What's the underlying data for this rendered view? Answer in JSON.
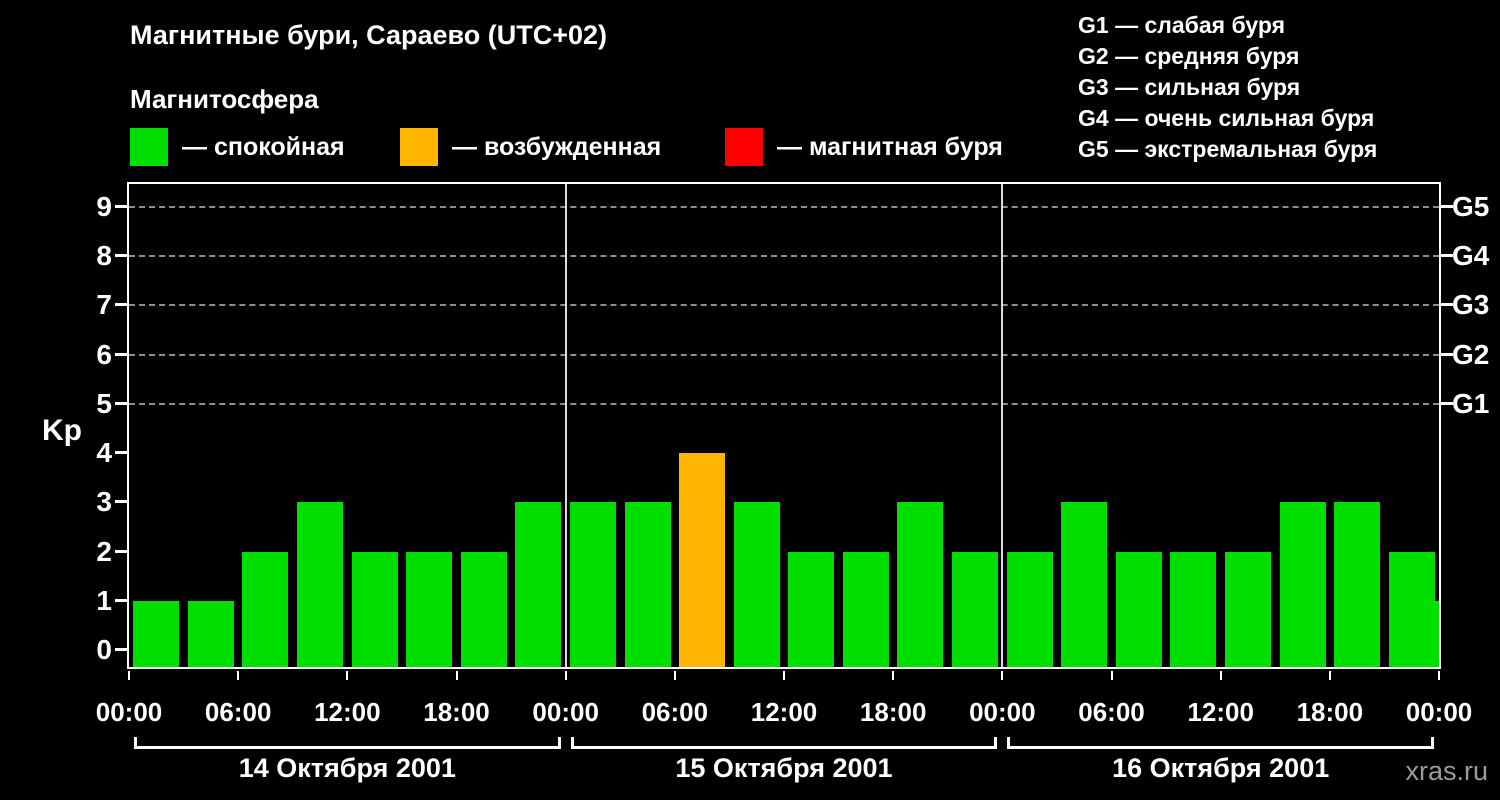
{
  "title": "Магнитные бури, Сараево (UTC+02)",
  "subtitle": "Магнитосфера",
  "legend": {
    "items": [
      {
        "name": "quiet",
        "label": "— спокойная",
        "color": "#00df00"
      },
      {
        "name": "excited",
        "label": "— возбужденная",
        "color": "#ffb400"
      },
      {
        "name": "storm",
        "label": "— магнитная буря",
        "color": "#ff0000"
      }
    ]
  },
  "g_legend": [
    "G1 — слабая буря",
    "G2 — средняя буря",
    "G3 — сильная буря",
    "G4 — очень сильная буря",
    "G5 — экстремальная буря"
  ],
  "watermark": "xras.ru",
  "chart_data": {
    "type": "bar",
    "title": "Магнитные бури, Сараево (UTC+02)",
    "ylabel": "Kp",
    "ylim": [
      0,
      9
    ],
    "y_ticks": [
      0,
      1,
      2,
      3,
      4,
      5,
      6,
      7,
      8,
      9
    ],
    "right_axis": [
      {
        "kp": 5,
        "label": "G1"
      },
      {
        "kp": 6,
        "label": "G2"
      },
      {
        "kp": 7,
        "label": "G3"
      },
      {
        "kp": 8,
        "label": "G4"
      },
      {
        "kp": 9,
        "label": "G5"
      }
    ],
    "grid_levels": [
      5,
      6,
      7,
      8,
      9
    ],
    "grid_style": "dashed",
    "x_tick_labels": [
      "00:00",
      "06:00",
      "12:00",
      "18:00",
      "00:00",
      "06:00",
      "12:00",
      "18:00",
      "00:00",
      "06:00",
      "12:00",
      "18:00",
      "00:00"
    ],
    "bar_interval_hours": 3,
    "days": [
      {
        "date": "14 Октября 2001",
        "values": [
          1,
          1,
          2,
          3,
          2,
          2,
          2,
          3
        ]
      },
      {
        "date": "15 Октября 2001",
        "values": [
          3,
          3,
          4,
          3,
          2,
          2,
          3,
          2
        ]
      },
      {
        "date": "16 Октября 2001",
        "values": [
          2,
          3,
          2,
          2,
          2,
          3,
          3,
          2
        ]
      }
    ],
    "partial_next_value": 1,
    "colors": {
      "quiet": "#00df00",
      "excited": "#ffb400",
      "storm": "#ff0000"
    },
    "color_rule": {
      "quiet_max_kp": 3,
      "excited_kp": 4,
      "storm_min_kp": 5
    }
  }
}
